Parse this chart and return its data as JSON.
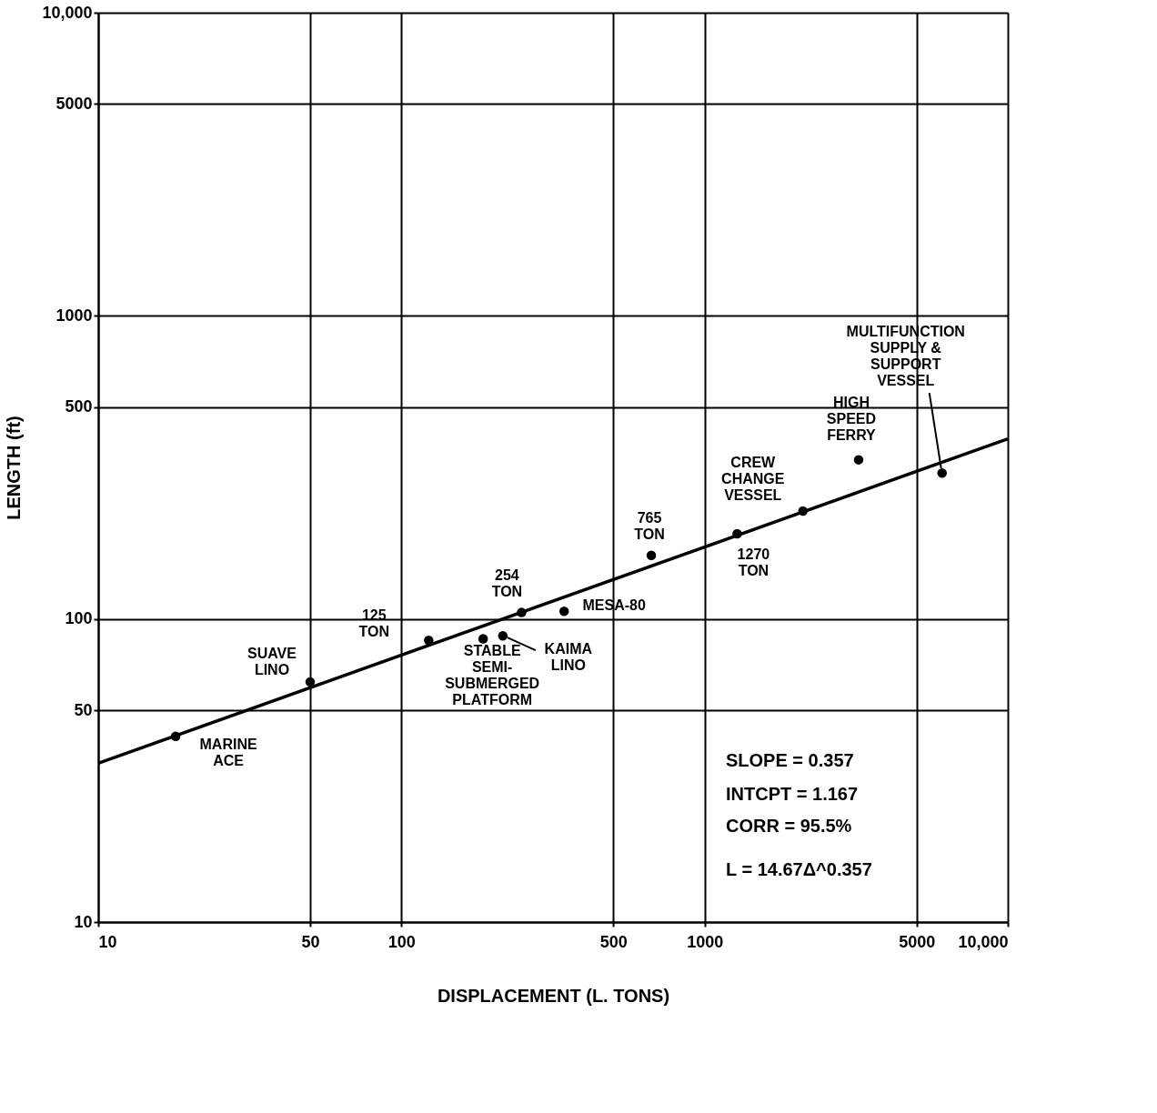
{
  "chart_data": {
    "type": "scatter",
    "xlabel": "DISPLACEMENT (L. TONS)",
    "ylabel": "LENGTH (ft)",
    "log": "xy",
    "grid": true,
    "line_style": "solid",
    "xlim": [
      10,
      10000
    ],
    "ylim": [
      10,
      10000
    ],
    "xticks": [
      10,
      50,
      100,
      500,
      1000,
      5000,
      {
        "value": 10000,
        "label": "10,000"
      }
    ],
    "yticks": [
      10,
      50,
      100,
      500,
      1000,
      5000,
      {
        "value": 10000,
        "label": "10,000"
      }
    ],
    "series": [
      {
        "type": "scatter",
        "marker": "circle",
        "color": "#000000",
        "x": [
          18,
          50,
          123,
          186,
          216,
          249,
          344,
          667,
          1280,
          2110,
          3220,
          6070
        ],
        "values": [
          41,
          62,
          85,
          86,
          88,
          105,
          106,
          162,
          191,
          227,
          335,
          303
        ]
      },
      {
        "type": "line",
        "color": "#000000",
        "x": [
          10,
          10000
        ],
        "values": [
          33.4,
          393
        ]
      }
    ],
    "annotations": [
      {
        "text": "MARINE\nACE",
        "x": 18,
        "y": 41
      },
      {
        "text": "SUAVE\nLINO",
        "x": 50,
        "y": 62
      },
      {
        "text": "125\nTON",
        "x": 123,
        "y": 85
      },
      {
        "text": "STABLE\nSEMI-\nSUBMERGED\nPLATFORM",
        "x": 186,
        "y": 86
      },
      {
        "text": "KAIMA\nLINO",
        "x": 216,
        "y": 88
      },
      {
        "text": "254\nTON",
        "x": 249,
        "y": 105
      },
      {
        "text": "MESA-80",
        "x": 344,
        "y": 106
      },
      {
        "text": "765\nTON",
        "x": 667,
        "y": 162
      },
      {
        "text": "1270\nTON",
        "x": 1280,
        "y": 191
      },
      {
        "text": "CREW\nCHANGE\nVESSEL",
        "x": 2110,
        "y": 227
      },
      {
        "text": "HIGH\nSPEED\nFERRY",
        "x": 3220,
        "y": 335
      },
      {
        "text": "MULTIFUNCTION\nSUPPLY &\nSUPPORT\nVESSEL",
        "x": 6070,
        "y": 303
      },
      "SLOPE = 0.357",
      "INTCPT = 1.167",
      "CORR = 95.5%",
      "L = 14.67Δ^0.357"
    ]
  }
}
